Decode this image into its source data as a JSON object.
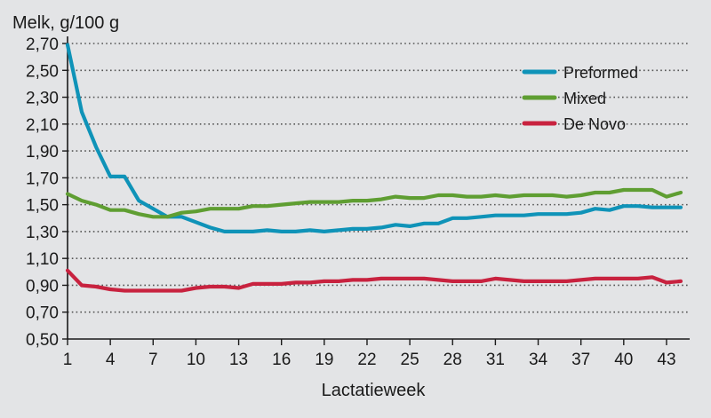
{
  "chart_data": {
    "type": "line",
    "ylabel": "Melk, g/100 g",
    "xlabel": "Lactatieweek",
    "ylim": [
      0.5,
      2.7
    ],
    "xlim": [
      1,
      44
    ],
    "yticks": [
      0.5,
      0.7,
      0.9,
      1.1,
      1.3,
      1.5,
      1.7,
      1.9,
      2.1,
      2.3,
      2.5,
      2.7
    ],
    "ytick_labels": [
      "0,50",
      "0,70",
      "0,90",
      "1,10",
      "1,30",
      "1,50",
      "1,70",
      "1,90",
      "2,10",
      "2,30",
      "2,50",
      "2,70"
    ],
    "xticks": [
      1,
      4,
      7,
      10,
      13,
      16,
      19,
      22,
      25,
      28,
      31,
      34,
      37,
      40,
      43
    ],
    "xtick_labels": [
      "1",
      "4",
      "7",
      "10",
      "13",
      "16",
      "19",
      "22",
      "25",
      "28",
      "31",
      "34",
      "37",
      "40",
      "43"
    ],
    "grid": "horizontal-dotted",
    "legend_position": "top-right",
    "x": [
      1,
      2,
      3,
      4,
      5,
      6,
      7,
      8,
      9,
      10,
      11,
      12,
      13,
      14,
      15,
      16,
      17,
      18,
      19,
      20,
      21,
      22,
      23,
      24,
      25,
      26,
      27,
      28,
      29,
      30,
      31,
      32,
      33,
      34,
      35,
      36,
      37,
      38,
      39,
      40,
      41,
      42,
      43,
      44
    ],
    "series": [
      {
        "name": "Preformed",
        "color": "#0f93b8",
        "values": [
          2.69,
          2.19,
          1.93,
          1.71,
          1.71,
          1.53,
          1.47,
          1.41,
          1.41,
          1.37,
          1.33,
          1.3,
          1.3,
          1.3,
          1.31,
          1.3,
          1.3,
          1.31,
          1.3,
          1.31,
          1.32,
          1.32,
          1.33,
          1.35,
          1.34,
          1.36,
          1.36,
          1.4,
          1.4,
          1.41,
          1.42,
          1.42,
          1.42,
          1.43,
          1.43,
          1.43,
          1.44,
          1.47,
          1.46,
          1.49,
          1.49,
          1.48,
          1.48,
          1.48
        ]
      },
      {
        "name": "Mixed",
        "color": "#5f9e32",
        "values": [
          1.58,
          1.53,
          1.5,
          1.46,
          1.46,
          1.43,
          1.41,
          1.41,
          1.44,
          1.45,
          1.47,
          1.47,
          1.47,
          1.49,
          1.49,
          1.5,
          1.51,
          1.52,
          1.52,
          1.52,
          1.53,
          1.53,
          1.54,
          1.56,
          1.55,
          1.55,
          1.57,
          1.57,
          1.56,
          1.56,
          1.57,
          1.56,
          1.57,
          1.57,
          1.57,
          1.56,
          1.57,
          1.59,
          1.59,
          1.61,
          1.61,
          1.61,
          1.56,
          1.59
        ]
      },
      {
        "name": "De Novo",
        "color": "#c8223f",
        "values": [
          1.01,
          0.9,
          0.89,
          0.87,
          0.86,
          0.86,
          0.86,
          0.86,
          0.86,
          0.88,
          0.89,
          0.89,
          0.88,
          0.91,
          0.91,
          0.91,
          0.92,
          0.92,
          0.93,
          0.93,
          0.94,
          0.94,
          0.95,
          0.95,
          0.95,
          0.95,
          0.94,
          0.93,
          0.93,
          0.93,
          0.95,
          0.94,
          0.93,
          0.93,
          0.93,
          0.93,
          0.94,
          0.95,
          0.95,
          0.95,
          0.95,
          0.96,
          0.92,
          0.93
        ]
      }
    ]
  }
}
